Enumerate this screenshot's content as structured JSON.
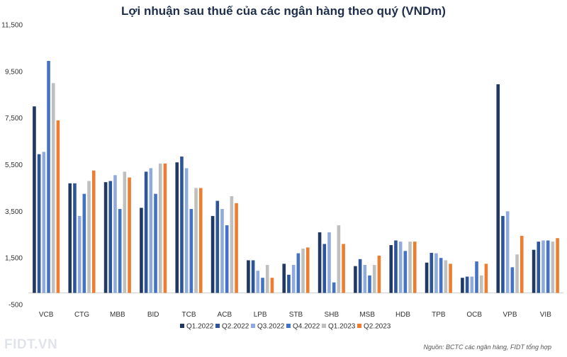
{
  "chart_data": {
    "type": "bar",
    "title": "Lợi nhuận sau thuế của các ngân hàng theo quý (VNDm)",
    "categories": [
      "VCB",
      "CTG",
      "MBB",
      "BID",
      "TCB",
      "ACB",
      "LPB",
      "STB",
      "SHB",
      "MSB",
      "HDB",
      "TPB",
      "OCB",
      "VPB",
      "VIB"
    ],
    "series": [
      {
        "name": "Q1.2022",
        "color": "#1f3864",
        "values": [
          8000,
          4700,
          4750,
          3650,
          5600,
          3300,
          1400,
          1250,
          2600,
          1150,
          2050,
          1300,
          650,
          8950,
          1850
        ]
      },
      {
        "name": "Q2.2022",
        "color": "#2e5597",
        "values": [
          5950,
          4700,
          4800,
          5200,
          5850,
          3950,
          1400,
          780,
          2100,
          1450,
          2250,
          1720,
          700,
          3300,
          2200
        ]
      },
      {
        "name": "Q3.2022",
        "color": "#8faadc",
        "values": [
          6050,
          3300,
          5050,
          5350,
          5350,
          3600,
          950,
          1200,
          2600,
          1200,
          2200,
          1700,
          700,
          3500,
          2250
        ]
      },
      {
        "name": "Q4.2022",
        "color": "#4472c4",
        "values": [
          9950,
          4250,
          3600,
          4250,
          3600,
          2900,
          650,
          1700,
          450,
          750,
          1800,
          1500,
          1350,
          1100,
          2250
        ]
      },
      {
        "name": "Q1.2023",
        "color": "#bfbfbf",
        "values": [
          9000,
          4800,
          5200,
          5550,
          4500,
          4150,
          1200,
          1900,
          2900,
          1200,
          2200,
          1400,
          750,
          1650,
          2200
        ]
      },
      {
        "name": "Q2.2023",
        "color": "#ed7d31",
        "values": [
          7400,
          5250,
          4950,
          5550,
          4500,
          3850,
          650,
          1950,
          2100,
          1600,
          2200,
          1250,
          1250,
          2450,
          2350
        ]
      }
    ],
    "y_ticks": [
      "11,500",
      "9,500",
      "7,500",
      "5,500",
      "3,500",
      "1,500",
      "-500"
    ],
    "ylim": [
      -500,
      11500
    ],
    "grid": false,
    "legend_position": "bottom",
    "xlabel": "",
    "ylabel": ""
  },
  "branding": {
    "logo": "FIDT.VN",
    "source": "Nguồn: BCTC các ngân hàng, FIDT tổng hợp"
  }
}
